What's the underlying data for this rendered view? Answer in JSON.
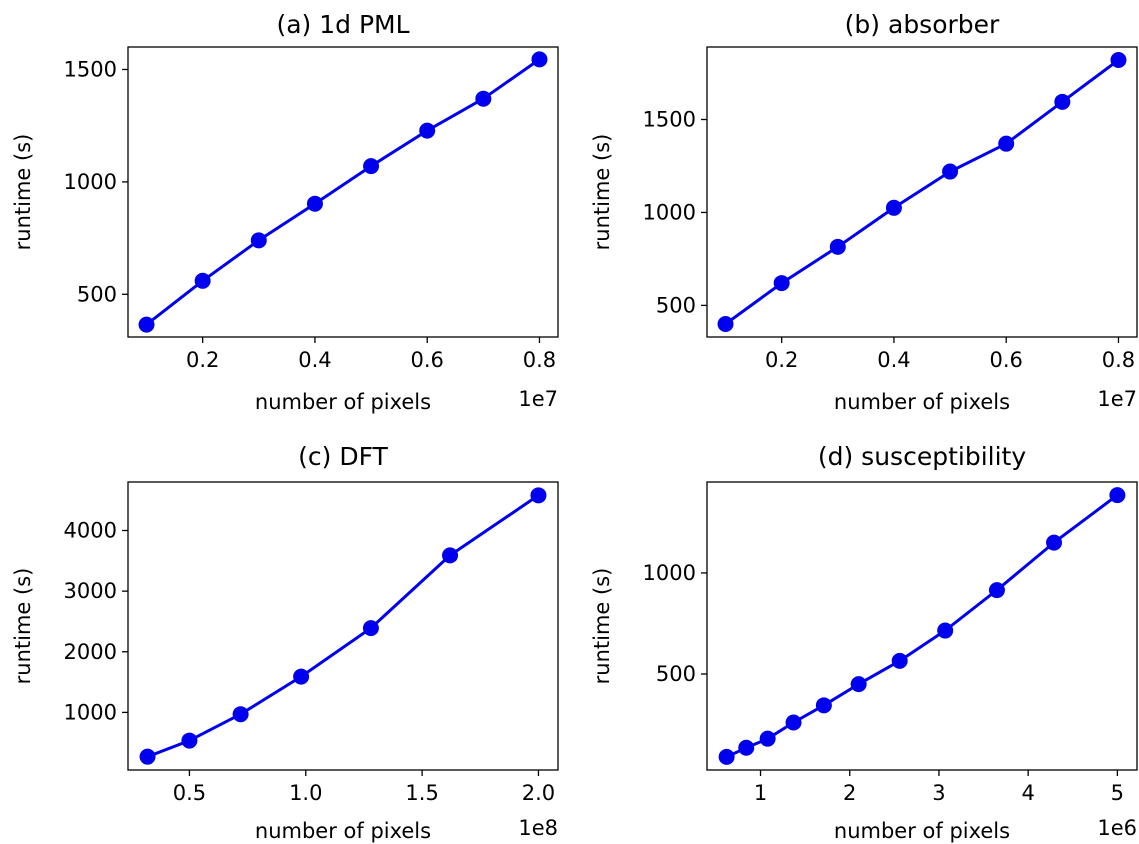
{
  "chart_data": [
    {
      "type": "line",
      "title": "(a) 1d PML",
      "xlabel": "number of pixels",
      "ylabel": "runtime (s)",
      "x_offset_label": "1e7",
      "x": [
        0.1,
        0.2,
        0.3,
        0.4,
        0.5,
        0.6,
        0.7,
        0.8
      ],
      "y": [
        365,
        560,
        740,
        903,
        1070,
        1228,
        1370,
        1545
      ],
      "xlim": [
        0.067,
        0.833
      ],
      "ylim": [
        310,
        1600
      ],
      "xticks": [
        0.2,
        0.4,
        0.6,
        0.8
      ],
      "xtick_labels": [
        "0.2",
        "0.4",
        "0.6",
        "0.8"
      ],
      "yticks": [
        500,
        1000,
        1500
      ],
      "ytick_labels": [
        "500",
        "1000",
        "1500"
      ],
      "grid": false
    },
    {
      "type": "line",
      "title": "(b) absorber",
      "xlabel": "number of pixels",
      "ylabel": "runtime (s)",
      "x_offset_label": "1e7",
      "x": [
        0.1,
        0.2,
        0.3,
        0.4,
        0.5,
        0.6,
        0.7,
        0.8
      ],
      "y": [
        400,
        620,
        815,
        1025,
        1220,
        1370,
        1595,
        1820
      ],
      "xlim": [
        0.067,
        0.833
      ],
      "ylim": [
        330,
        1890
      ],
      "xticks": [
        0.2,
        0.4,
        0.6,
        0.8
      ],
      "xtick_labels": [
        "0.2",
        "0.4",
        "0.6",
        "0.8"
      ],
      "yticks": [
        500,
        1000,
        1500
      ],
      "ytick_labels": [
        "500",
        "1000",
        "1500"
      ],
      "grid": false
    },
    {
      "type": "line",
      "title": "(c) DFT",
      "xlabel": "number of pixels",
      "ylabel": "runtime (s)",
      "x_offset_label": "1e8",
      "x": [
        0.32,
        0.5,
        0.72,
        0.98,
        1.28,
        1.62,
        2.0
      ],
      "y": [
        270,
        535,
        970,
        1590,
        2390,
        3590,
        4580
      ],
      "xlim": [
        0.236,
        2.084
      ],
      "ylim": [
        50,
        4800
      ],
      "xticks": [
        0.5,
        1.0,
        1.5,
        2.0
      ],
      "xtick_labels": [
        "0.5",
        "1.0",
        "1.5",
        "2.0"
      ],
      "yticks": [
        1000,
        2000,
        3000,
        4000
      ],
      "ytick_labels": [
        "1000",
        "2000",
        "3000",
        "4000"
      ],
      "grid": false
    },
    {
      "type": "line",
      "title": "(d) susceptibility",
      "xlabel": "number of pixels",
      "ylabel": "runtime (s)",
      "x_offset_label": "1e6",
      "x": [
        0.62,
        0.84,
        1.08,
        1.37,
        1.71,
        2.1,
        2.56,
        3.07,
        3.65,
        4.29,
        5.0
      ],
      "y": [
        90,
        135,
        180,
        260,
        345,
        450,
        565,
        715,
        915,
        1150,
        1385
      ],
      "xlim": [
        0.4,
        5.22
      ],
      "ylim": [
        25,
        1450
      ],
      "xticks": [
        1,
        2,
        3,
        4,
        5
      ],
      "xtick_labels": [
        "1",
        "2",
        "3",
        "4",
        "5"
      ],
      "yticks": [
        500,
        1000
      ],
      "ytick_labels": [
        "500",
        "1000"
      ],
      "grid": false
    }
  ],
  "style": {
    "series_color": "#0000ee",
    "axis_color": "#000000",
    "background": "#ffffff"
  }
}
